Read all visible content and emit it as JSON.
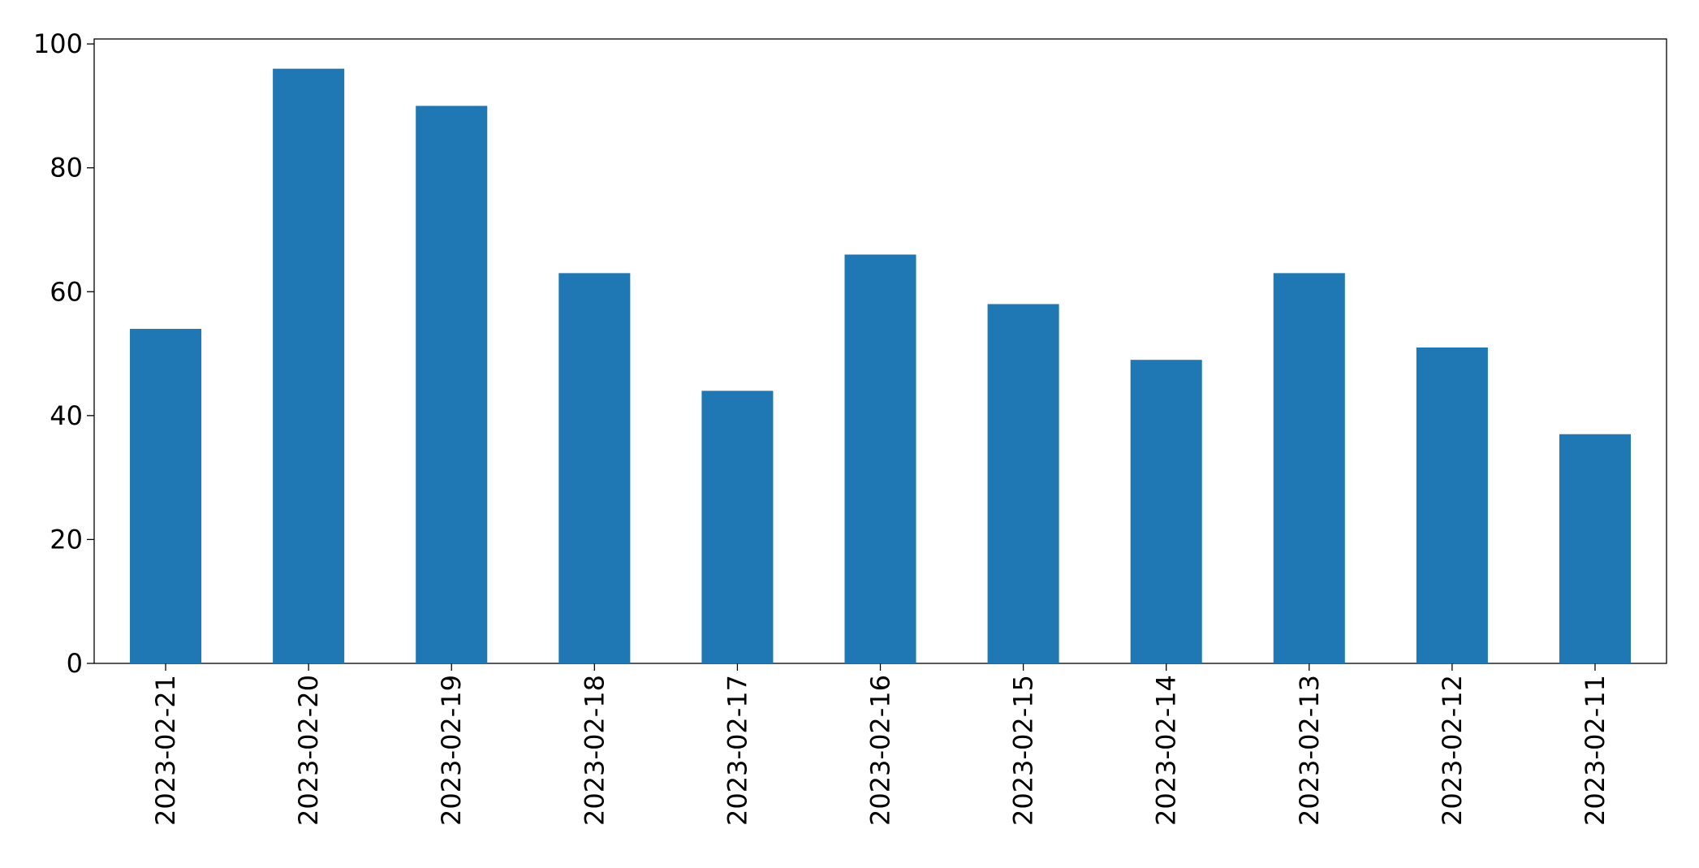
{
  "chart_data": {
    "type": "bar",
    "categories": [
      "2023-02-21",
      "2023-02-20",
      "2023-02-19",
      "2023-02-18",
      "2023-02-17",
      "2023-02-16",
      "2023-02-15",
      "2023-02-14",
      "2023-02-13",
      "2023-02-12",
      "2023-02-11"
    ],
    "values": [
      54,
      96,
      90,
      63,
      44,
      66,
      58,
      49,
      63,
      51,
      37
    ],
    "color": "#1f77b4",
    "ylim": [
      0,
      100.8
    ],
    "yticks": [
      0,
      20,
      40,
      60,
      80,
      100
    ],
    "grid": false
  }
}
